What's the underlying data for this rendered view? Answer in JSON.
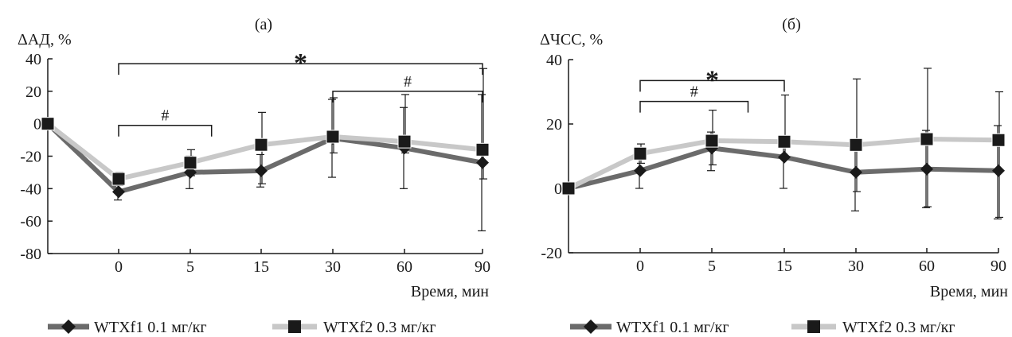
{
  "colors": {
    "series1": "#6b6b6b",
    "series2": "#c8c8c8",
    "marker": "#1a1a1a",
    "axis": "#1a1a1a"
  },
  "chart_data": [
    {
      "type": "line",
      "title": "(а)",
      "ylabel": "ΔАД, %",
      "xlabel": "Время, мин",
      "categories": [
        "",
        "0",
        "5",
        "15",
        "30",
        "60",
        "90"
      ],
      "ylim": [
        -80,
        40
      ],
      "yticks": [
        40,
        20,
        0,
        -20,
        -40,
        -60,
        -80
      ],
      "series": [
        {
          "name": "WTXf1 0.1 мг/кг",
          "marker": "diamond",
          "values": [
            0,
            -42,
            -30,
            -29,
            -9,
            -15,
            -24
          ],
          "err_low": [
            0,
            5,
            10,
            10,
            24,
            25,
            42
          ],
          "err_high": [
            0,
            5,
            10,
            10,
            24,
            25,
            42
          ]
        },
        {
          "name": "WTXf2 0.3 мг/кг",
          "marker": "square",
          "values": [
            0,
            -34,
            -24,
            -13,
            -8,
            -11,
            -16
          ],
          "err_low": [
            0,
            4,
            8,
            24,
            10,
            7,
            18
          ],
          "err_high": [
            0,
            4,
            8,
            20,
            24,
            29,
            50
          ]
        }
      ],
      "annotations": [
        {
          "text": "*",
          "from": 1,
          "to": 6,
          "level": 37
        },
        {
          "text": "#",
          "from": 4,
          "to": 6,
          "level": 20
        },
        {
          "text": "#",
          "from": 1,
          "to": 2.3,
          "level": -1
        }
      ],
      "legend": "bottom"
    },
    {
      "type": "line",
      "title": "(б)",
      "ylabel": "ΔЧСС, %",
      "xlabel": "Время, мин",
      "categories": [
        "",
        "0",
        "5",
        "15",
        "30",
        "60",
        "90"
      ],
      "ylim": [
        -20,
        40
      ],
      "yticks": [
        40,
        20,
        0,
        -20
      ],
      "series": [
        {
          "name": "WTXf1 0.1 мг/кг",
          "marker": "diamond",
          "values": [
            0,
            5.5,
            12.5,
            9.7,
            5,
            6,
            5.5
          ],
          "err_low": [
            0,
            5.5,
            7,
            9.7,
            12,
            12,
            15
          ],
          "err_high": [
            0,
            5.5,
            5,
            5,
            7,
            12,
            14
          ]
        },
        {
          "name": "WTXf2 0.3 мг/кг",
          "marker": "square",
          "values": [
            0,
            10.8,
            14.8,
            14.5,
            13.5,
            15.3,
            15
          ],
          "err_low": [
            0,
            3,
            7.5,
            4.5,
            14.5,
            21,
            24
          ],
          "err_high": [
            0,
            3,
            9.5,
            14.5,
            20.5,
            22,
            15
          ]
        }
      ],
      "annotations": [
        {
          "text": "*",
          "from": 1,
          "to": 3,
          "level": 33.5
        },
        {
          "text": "#",
          "from": 1,
          "to": 2.5,
          "level": 27
        }
      ],
      "legend": "bottom"
    }
  ]
}
